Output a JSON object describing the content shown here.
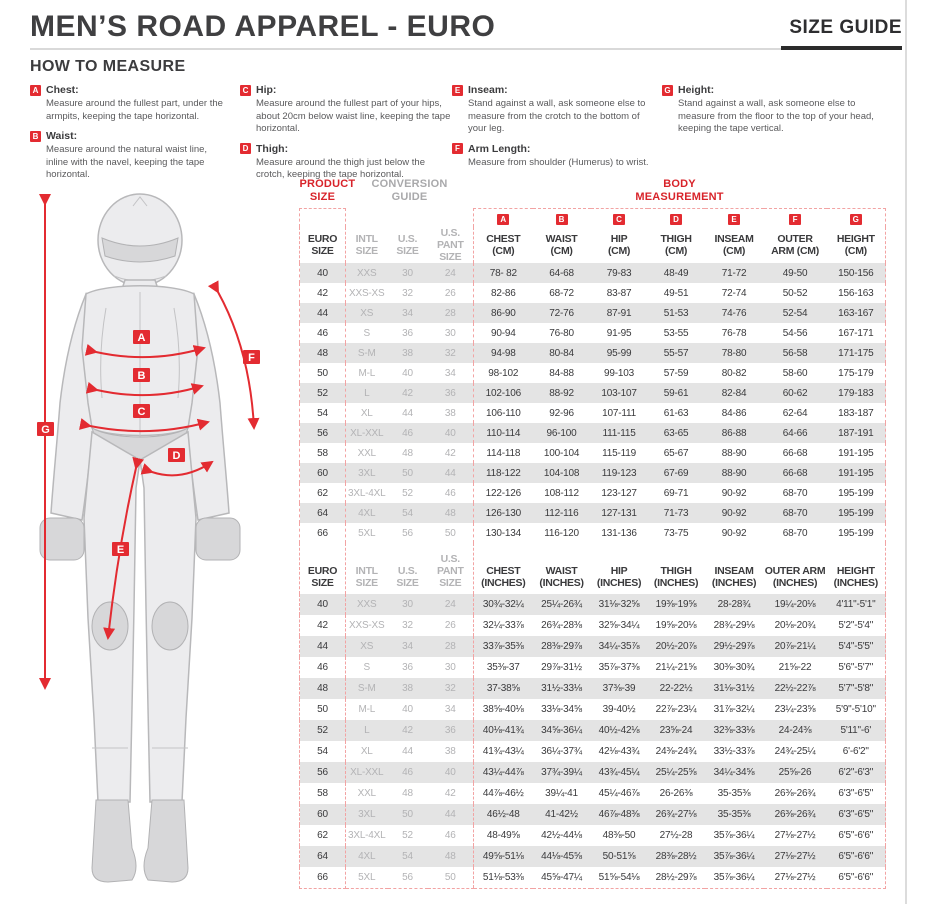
{
  "colors": {
    "accent_red": "#e32b31",
    "red_text": "#d8232a",
    "muted_gray": "#b3b3b5",
    "stripe": "#e4e4e4",
    "dashed_pink": "#f2a3a3"
  },
  "header": {
    "title": "MEN’S ROAD APPAREL - EURO",
    "size_guide_label": "SIZE GUIDE",
    "how_to_measure": "HOW TO MEASURE"
  },
  "legend_columns": [
    [
      {
        "letter": "A",
        "title": "Chest:",
        "text": "Measure around the fullest part, under the armpits, keeping the tape horizontal."
      },
      {
        "letter": "B",
        "title": "Waist:",
        "text": "Measure around the natural waist line, inline with the navel, keeping the tape horizontal."
      }
    ],
    [
      {
        "letter": "C",
        "title": "Hip:",
        "text": "Measure around the fullest part of your hips, about 20cm below waist line, keeping the tape horizontal."
      },
      {
        "letter": "D",
        "title": "Thigh:",
        "text": "Measure around the thigh just below the crotch, keeping the tape horizontal."
      }
    ],
    [
      {
        "letter": "E",
        "title": "Inseam:",
        "text": "Stand against a wall, ask someone else to measure from the crotch to the bottom of your leg."
      },
      {
        "letter": "F",
        "title": "Arm Length:",
        "text": "Measure from shoulder (Humerus) to wrist."
      }
    ],
    [
      {
        "letter": "G",
        "title": "Height:",
        "text": "Stand against a wall, ask someone else to measure from the floor to the top of your head, keeping the tape vertical."
      }
    ]
  ],
  "figure": {
    "letters": [
      "A",
      "B",
      "C",
      "D",
      "E",
      "F",
      "G"
    ]
  },
  "table": {
    "group_headers": [
      {
        "label": "PRODUCT\nSIZE",
        "colspan": 1,
        "style": "g-red"
      },
      {
        "label": "CONVERSION\nGUIDE",
        "colspan": 3,
        "style": "g-gray"
      },
      {
        "label": "BODY\nMEASUREMENT",
        "colspan": 7,
        "style": "g-red"
      }
    ],
    "letters": [
      "A",
      "B",
      "C",
      "D",
      "E",
      "F",
      "G"
    ],
    "cm_columns": [
      "EURO\nSIZE",
      "INTL\nSIZE",
      "U.S.\nSIZE",
      "U.S.\nPANT SIZE",
      "CHEST\n(CM)",
      "WAIST\n(CM)",
      "HIP\n(CM)",
      "THIGH\n(CM)",
      "INSEAM\n(CM)",
      "OUTER\nARM (CM)",
      "HEIGHT\n(CM)"
    ],
    "inch_columns": [
      "EURO\nSIZE",
      "INTL\nSIZE",
      "U.S.\nSIZE",
      "U.S.\nPANT SIZE",
      "CHEST\n(INCHES)",
      "WAIST\n(INCHES)",
      "HIP\n(INCHES)",
      "THIGH\n(INCHES)",
      "INSEAM\n(INCHES)",
      "OUTER ARM\n(INCHES)",
      "HEIGHT\n(INCHES)"
    ],
    "cm_rows": [
      [
        "40",
        "XXS",
        "30",
        "24",
        "78- 82",
        "64-68",
        "79-83",
        "48-49",
        "71-72",
        "49-50",
        "150-156"
      ],
      [
        "42",
        "XXS-XS",
        "32",
        "26",
        "82-86",
        "68-72",
        "83-87",
        "49-51",
        "72-74",
        "50-52",
        "156-163"
      ],
      [
        "44",
        "XS",
        "34",
        "28",
        "86-90",
        "72-76",
        "87-91",
        "51-53",
        "74-76",
        "52-54",
        "163-167"
      ],
      [
        "46",
        "S",
        "36",
        "30",
        "90-94",
        "76-80",
        "91-95",
        "53-55",
        "76-78",
        "54-56",
        "167-171"
      ],
      [
        "48",
        "S-M",
        "38",
        "32",
        "94-98",
        "80-84",
        "95-99",
        "55-57",
        "78-80",
        "56-58",
        "171-175"
      ],
      [
        "50",
        "M-L",
        "40",
        "34",
        "98-102",
        "84-88",
        "99-103",
        "57-59",
        "80-82",
        "58-60",
        "175-179"
      ],
      [
        "52",
        "L",
        "42",
        "36",
        "102-106",
        "88-92",
        "103-107",
        "59-61",
        "82-84",
        "60-62",
        "179-183"
      ],
      [
        "54",
        "XL",
        "44",
        "38",
        "106-110",
        "92-96",
        "107-111",
        "61-63",
        "84-86",
        "62-64",
        "183-187"
      ],
      [
        "56",
        "XL-XXL",
        "46",
        "40",
        "110-114",
        "96-100",
        "111-115",
        "63-65",
        "86-88",
        "64-66",
        "187-191"
      ],
      [
        "58",
        "XXL",
        "48",
        "42",
        "114-118",
        "100-104",
        "115-119",
        "65-67",
        "88-90",
        "66-68",
        "191-195"
      ],
      [
        "60",
        "3XL",
        "50",
        "44",
        "118-122",
        "104-108",
        "119-123",
        "67-69",
        "88-90",
        "66-68",
        "191-195"
      ],
      [
        "62",
        "3XL-4XL",
        "52",
        "46",
        "122-126",
        "108-112",
        "123-127",
        "69-71",
        "90-92",
        "68-70",
        "195-199"
      ],
      [
        "64",
        "4XL",
        "54",
        "48",
        "126-130",
        "112-116",
        "127-131",
        "71-73",
        "90-92",
        "68-70",
        "195-199"
      ],
      [
        "66",
        "5XL",
        "56",
        "50",
        "130-134",
        "116-120",
        "131-136",
        "73-75",
        "90-92",
        "68-70",
        "195-199"
      ]
    ],
    "inch_rows": [
      [
        "40",
        "XXS",
        "30",
        "24",
        "30¾-32¼",
        "25¼-26¾",
        "31⅛-32⅝",
        "19⅜-19⅝",
        "28-28¾",
        "19¼-20⅛",
        "4'11\"-5'1\""
      ],
      [
        "42",
        "XXS-XS",
        "32",
        "26",
        "32¼-33⅞",
        "26¾-28⅜",
        "32⅝-34¼",
        "19⅝-20⅛",
        "28¾-29⅛",
        "20⅛-20¾",
        "5'2\"-5'4\""
      ],
      [
        "44",
        "XS",
        "34",
        "28",
        "33⅞-35⅜",
        "28⅜-29⅞",
        "34¼-35⅞",
        "20½-20⅞",
        "29½-29⅞",
        "20⅞-21¼",
        "5'4\"-5'5\""
      ],
      [
        "46",
        "S",
        "36",
        "30",
        "35⅜-37",
        "29⅞-31½",
        "35⅞-37⅜",
        "21¼-21⅝",
        "30⅜-30¾",
        "21⅝-22",
        "5'6\"-5'7\""
      ],
      [
        "48",
        "S-M",
        "38",
        "32",
        "37-38⅝",
        "31½-33⅛",
        "37⅜-39",
        "22-22½",
        "31⅛-31½",
        "22½-22⅞",
        "5'7\"-5'8\""
      ],
      [
        "50",
        "M-L",
        "40",
        "34",
        "38⅝-40⅛",
        "33⅛-34⅝",
        "39-40½",
        "22⅞-23¼",
        "31⅞-32¼",
        "23¼-23⅝",
        "5'9\"-5'10\""
      ],
      [
        "52",
        "L",
        "42",
        "36",
        "40⅛-41¾",
        "34⅝-36¼",
        "40½-42⅛",
        "23⅝-24",
        "32⅜-33⅛",
        "24-24⅜",
        "5'11\"-6'"
      ],
      [
        "54",
        "XL",
        "44",
        "38",
        "41¾-43¼",
        "36¼-37¾",
        "42⅛-43¾",
        "24⅜-24¾",
        "33½-33⅞",
        "24¾-25¼",
        "6'-6'2\""
      ],
      [
        "56",
        "XL-XXL",
        "46",
        "40",
        "43¼-44⅞",
        "37¾-39¼",
        "43¾-45¼",
        "25¼-25⅝",
        "34¼-34⅝",
        "25⅝-26",
        "6'2\"-6'3\""
      ],
      [
        "58",
        "XXL",
        "48",
        "42",
        "44⅞-46½",
        "39¼-41",
        "45¼-46⅞",
        "26-26⅜",
        "35-35⅜",
        "26⅜-26¾",
        "6'3\"-6'5\""
      ],
      [
        "60",
        "3XL",
        "50",
        "44",
        "46½-48",
        "41-42½",
        "46⅞-48⅜",
        "26¾-27⅛",
        "35-35⅜",
        "26⅜-26¾",
        "6'3\"-6'5\""
      ],
      [
        "62",
        "3XL-4XL",
        "52",
        "46",
        "48-49⅝",
        "42½-44⅛",
        "48⅜-50",
        "27½-28",
        "35⅞-36¼",
        "27⅛-27½",
        "6'5\"-6'6\""
      ],
      [
        "64",
        "4XL",
        "54",
        "48",
        "49⅝-51⅛",
        "44⅛-45⅝",
        "50-51⅝",
        "28⅜-28½",
        "35⅞-36¼",
        "27⅛-27½",
        "6'5\"-6'6\""
      ],
      [
        "66",
        "5XL",
        "56",
        "50",
        "51⅛-53⅜",
        "45⅝-47¼",
        "51⅝-54⅛",
        "28½-29⅞",
        "35⅞-36¼",
        "27⅛-27½",
        "6'5\"-6'6\""
      ]
    ]
  }
}
